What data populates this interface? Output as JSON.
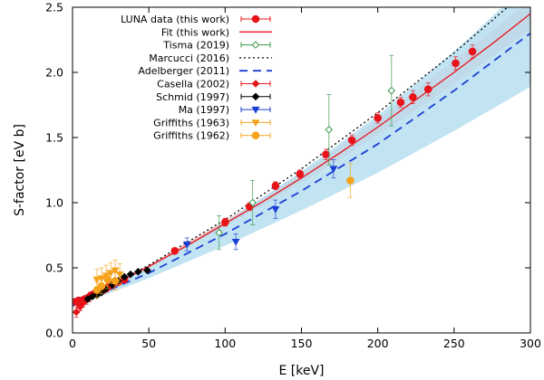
{
  "chart_data": {
    "type": "scatter",
    "xlabel": "E [keV]",
    "ylabel": "S-factor [eV b]",
    "xlim": [
      0,
      300
    ],
    "ylim": [
      0,
      2.5
    ],
    "x_ticks": [
      0,
      50,
      100,
      150,
      200,
      250,
      300
    ],
    "y_ticks": [
      0.0,
      0.5,
      1.0,
      1.5,
      2.0,
      2.5
    ],
    "y_tick_labels": [
      "0.0",
      "0.5",
      "1.0",
      "1.5",
      "2.0",
      "2.5"
    ],
    "grid": false,
    "legend_position": "top-left",
    "series": [
      {
        "name": "LUNA data (this work)",
        "kind": "points",
        "marker": "circle",
        "filled": true,
        "color": "#e8141a",
        "points": [
          {
            "x": 2,
            "y": 0.24,
            "err": 0.02
          },
          {
            "x": 4,
            "y": 0.25,
            "err": 0.02
          },
          {
            "x": 6,
            "y": 0.25,
            "err": 0.02
          },
          {
            "x": 8,
            "y": 0.26,
            "err": 0.02
          },
          {
            "x": 10,
            "y": 0.27,
            "err": 0.02
          },
          {
            "x": 12,
            "y": 0.29,
            "err": 0.02
          },
          {
            "x": 14,
            "y": 0.3,
            "err": 0.02
          },
          {
            "x": 16,
            "y": 0.31,
            "err": 0.02
          },
          {
            "x": 18,
            "y": 0.32,
            "err": 0.02
          },
          {
            "x": 20,
            "y": 0.33,
            "err": 0.02
          },
          {
            "x": 22,
            "y": 0.34,
            "err": 0.02
          },
          {
            "x": 24,
            "y": 0.36,
            "err": 0.02
          },
          {
            "x": 26,
            "y": 0.37,
            "err": 0.02
          },
          {
            "x": 30,
            "y": 0.39,
            "err": 0.02
          },
          {
            "x": 34,
            "y": 0.41,
            "err": 0.02
          },
          {
            "x": 67,
            "y": 0.63,
            "err": 0.02
          },
          {
            "x": 100,
            "y": 0.85,
            "err": 0.03
          },
          {
            "x": 116,
            "y": 0.97,
            "err": 0.03
          },
          {
            "x": 133,
            "y": 1.13,
            "err": 0.03
          },
          {
            "x": 149,
            "y": 1.22,
            "err": 0.03
          },
          {
            "x": 166,
            "y": 1.37,
            "err": 0.04
          },
          {
            "x": 183,
            "y": 1.48,
            "err": 0.04
          },
          {
            "x": 200,
            "y": 1.65,
            "err": 0.04
          },
          {
            "x": 215,
            "y": 1.77,
            "err": 0.04
          },
          {
            "x": 223,
            "y": 1.81,
            "err": 0.05
          },
          {
            "x": 233,
            "y": 1.87,
            "err": 0.05
          },
          {
            "x": 251,
            "y": 2.07,
            "err": 0.05
          },
          {
            "x": 262,
            "y": 2.16,
            "err": 0.05
          }
        ]
      },
      {
        "name": "Fit (this work)",
        "kind": "line",
        "dash": "solid",
        "color": "#e8141a",
        "x": [
          0,
          25,
          50,
          75,
          100,
          125,
          150,
          175,
          200,
          225,
          250,
          275,
          300
        ],
        "y": [
          0.22,
          0.36,
          0.51,
          0.67,
          0.84,
          1.01,
          1.19,
          1.38,
          1.58,
          1.79,
          2.0,
          2.22,
          2.45
        ],
        "band_lower": [
          0.21,
          0.35,
          0.5,
          0.65,
          0.82,
          0.98,
          1.15,
          1.33,
          1.52,
          1.71,
          1.91,
          2.12,
          2.33
        ],
        "band_upper": [
          0.23,
          0.37,
          0.52,
          0.69,
          0.86,
          1.04,
          1.23,
          1.43,
          1.64,
          1.86,
          2.09,
          2.32,
          2.56
        ],
        "band_color": "#f5b3b8"
      },
      {
        "name": "Tisma (2019)",
        "kind": "points",
        "marker": "diamond",
        "filled": false,
        "color": "#3c9a4c",
        "points": [
          {
            "x": 96,
            "y": 0.77,
            "err": 0.13
          },
          {
            "x": 118,
            "y": 1.0,
            "err": 0.17
          },
          {
            "x": 168,
            "y": 1.56,
            "err": 0.27
          },
          {
            "x": 209,
            "y": 1.86,
            "err": 0.27
          }
        ]
      },
      {
        "name": "Marcucci (2016)",
        "kind": "line",
        "dash": "dotted",
        "color": "#000000",
        "x": [
          0,
          50,
          100,
          150,
          200,
          250,
          300
        ],
        "y": [
          0.21,
          0.52,
          0.87,
          1.26,
          1.69,
          2.15,
          2.65
        ]
      },
      {
        "name": "Adelberger (2011)",
        "kind": "line",
        "dash": "dashed",
        "color": "#1c3fd6",
        "x": [
          0,
          50,
          100,
          150,
          200,
          250,
          300
        ],
        "y": [
          0.21,
          0.46,
          0.76,
          1.09,
          1.45,
          1.86,
          2.3
        ],
        "band_lower": [
          0.2,
          0.42,
          0.67,
          0.94,
          1.23,
          1.55,
          1.89
        ],
        "band_upper": [
          0.22,
          0.5,
          0.85,
          1.24,
          1.67,
          2.16,
          2.7
        ],
        "band_color": "#b7dff0"
      },
      {
        "name": "Casella (2002)",
        "kind": "points",
        "marker": "diamond",
        "filled": true,
        "color": "#e8141a",
        "points": [
          {
            "x": 2.5,
            "y": 0.16,
            "err": 0.04
          },
          {
            "x": 4,
            "y": 0.22,
            "err": 0.03
          },
          {
            "x": 5,
            "y": 0.2,
            "err": 0.03
          },
          {
            "x": 7,
            "y": 0.23,
            "err": 0.03
          },
          {
            "x": 9,
            "y": 0.25,
            "err": 0.03
          },
          {
            "x": 11,
            "y": 0.27,
            "err": 0.03
          }
        ]
      },
      {
        "name": "Schmid (1997)",
        "kind": "points",
        "marker": "diamond",
        "filled": true,
        "color": "#000000",
        "points": [
          {
            "x": 10,
            "y": 0.26,
            "err": 0.01
          },
          {
            "x": 13,
            "y": 0.28,
            "err": 0.01
          },
          {
            "x": 16,
            "y": 0.29,
            "err": 0.01
          },
          {
            "x": 19,
            "y": 0.31,
            "err": 0.01
          },
          {
            "x": 22,
            "y": 0.34,
            "err": 0.01
          },
          {
            "x": 26,
            "y": 0.37,
            "err": 0.01
          },
          {
            "x": 30,
            "y": 0.4,
            "err": 0.01
          },
          {
            "x": 34,
            "y": 0.43,
            "err": 0.01
          },
          {
            "x": 38,
            "y": 0.45,
            "err": 0.01
          },
          {
            "x": 43,
            "y": 0.47,
            "err": 0.01
          },
          {
            "x": 49,
            "y": 0.48,
            "err": 0.01
          }
        ]
      },
      {
        "name": "Ma (1997)",
        "kind": "points",
        "marker": "triangle-down",
        "filled": true,
        "color": "#1c3fd6",
        "points": [
          {
            "x": 75,
            "y": 0.68,
            "err": 0.05
          },
          {
            "x": 107,
            "y": 0.7,
            "err": 0.06
          },
          {
            "x": 133,
            "y": 0.95,
            "err": 0.07
          },
          {
            "x": 171,
            "y": 1.26,
            "err": 0.07
          }
        ]
      },
      {
        "name": "Griffiths (1963)",
        "kind": "points",
        "marker": "triangle-down",
        "filled": true,
        "color": "#f5a31c",
        "points": [
          {
            "x": 16,
            "y": 0.41,
            "err": 0.08
          },
          {
            "x": 19,
            "y": 0.42,
            "err": 0.08
          },
          {
            "x": 22,
            "y": 0.44,
            "err": 0.08
          },
          {
            "x": 25,
            "y": 0.46,
            "err": 0.08
          },
          {
            "x": 28,
            "y": 0.48,
            "err": 0.08
          },
          {
            "x": 31,
            "y": 0.45,
            "err": 0.08
          }
        ]
      },
      {
        "name": "Griffiths (1962)",
        "kind": "points",
        "marker": "circle",
        "filled": true,
        "color": "#f5a31c",
        "points": [
          {
            "x": 16,
            "y": 0.33,
            "err": 0.06
          },
          {
            "x": 19,
            "y": 0.36,
            "err": 0.06
          },
          {
            "x": 23,
            "y": 0.41,
            "err": 0.07
          },
          {
            "x": 28,
            "y": 0.4,
            "err": 0.07
          },
          {
            "x": 182,
            "y": 1.17,
            "err": 0.13
          }
        ]
      }
    ]
  }
}
